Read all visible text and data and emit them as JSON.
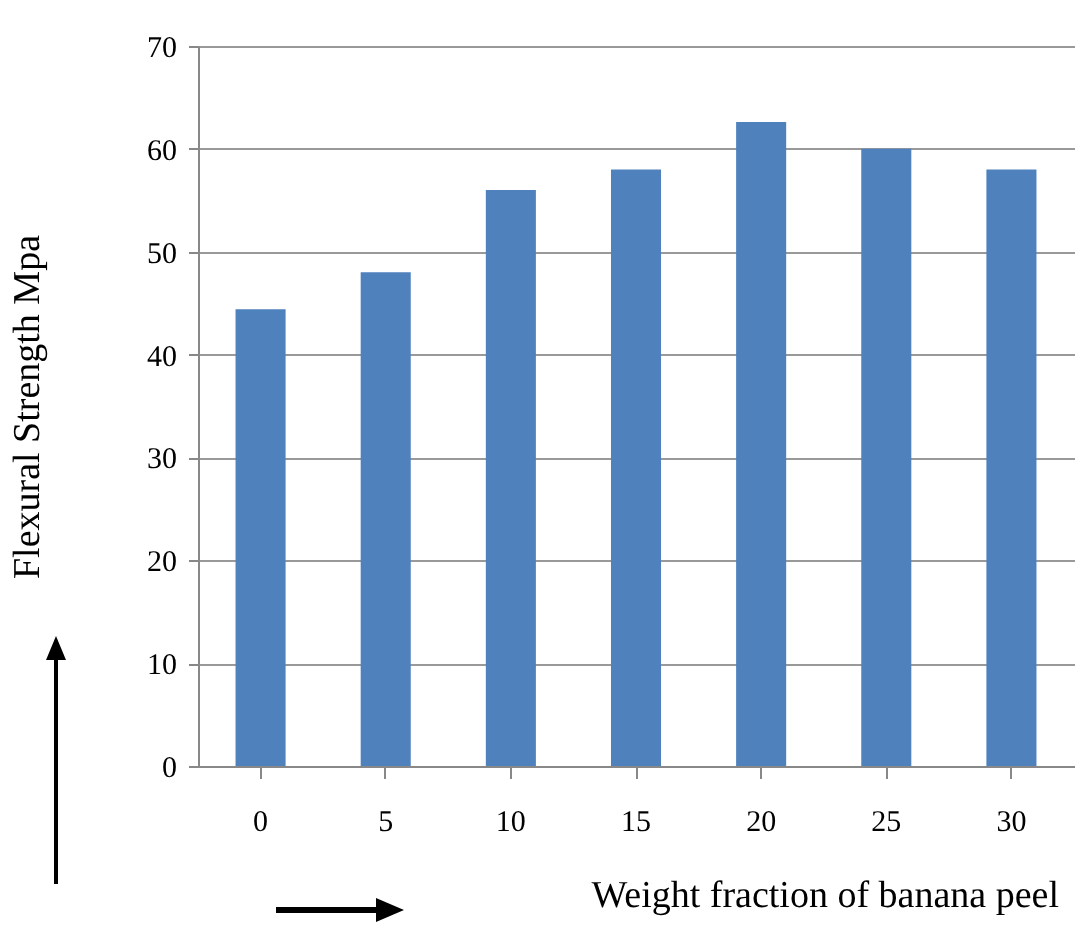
{
  "chart_data": {
    "type": "bar",
    "categories": [
      "0",
      "5",
      "10",
      "15",
      "20",
      "25",
      "30"
    ],
    "values": [
      44.4,
      48,
      56,
      58,
      62.6,
      60,
      58
    ],
    "color": "#4f81bd",
    "xlabel": "Weight fraction of banana peel",
    "ylabel": "Flexural Strength Mpa",
    "ylim": [
      0,
      70
    ],
    "yticks": [
      0,
      10,
      20,
      30,
      40,
      50,
      60,
      70
    ],
    "grid": "y"
  }
}
